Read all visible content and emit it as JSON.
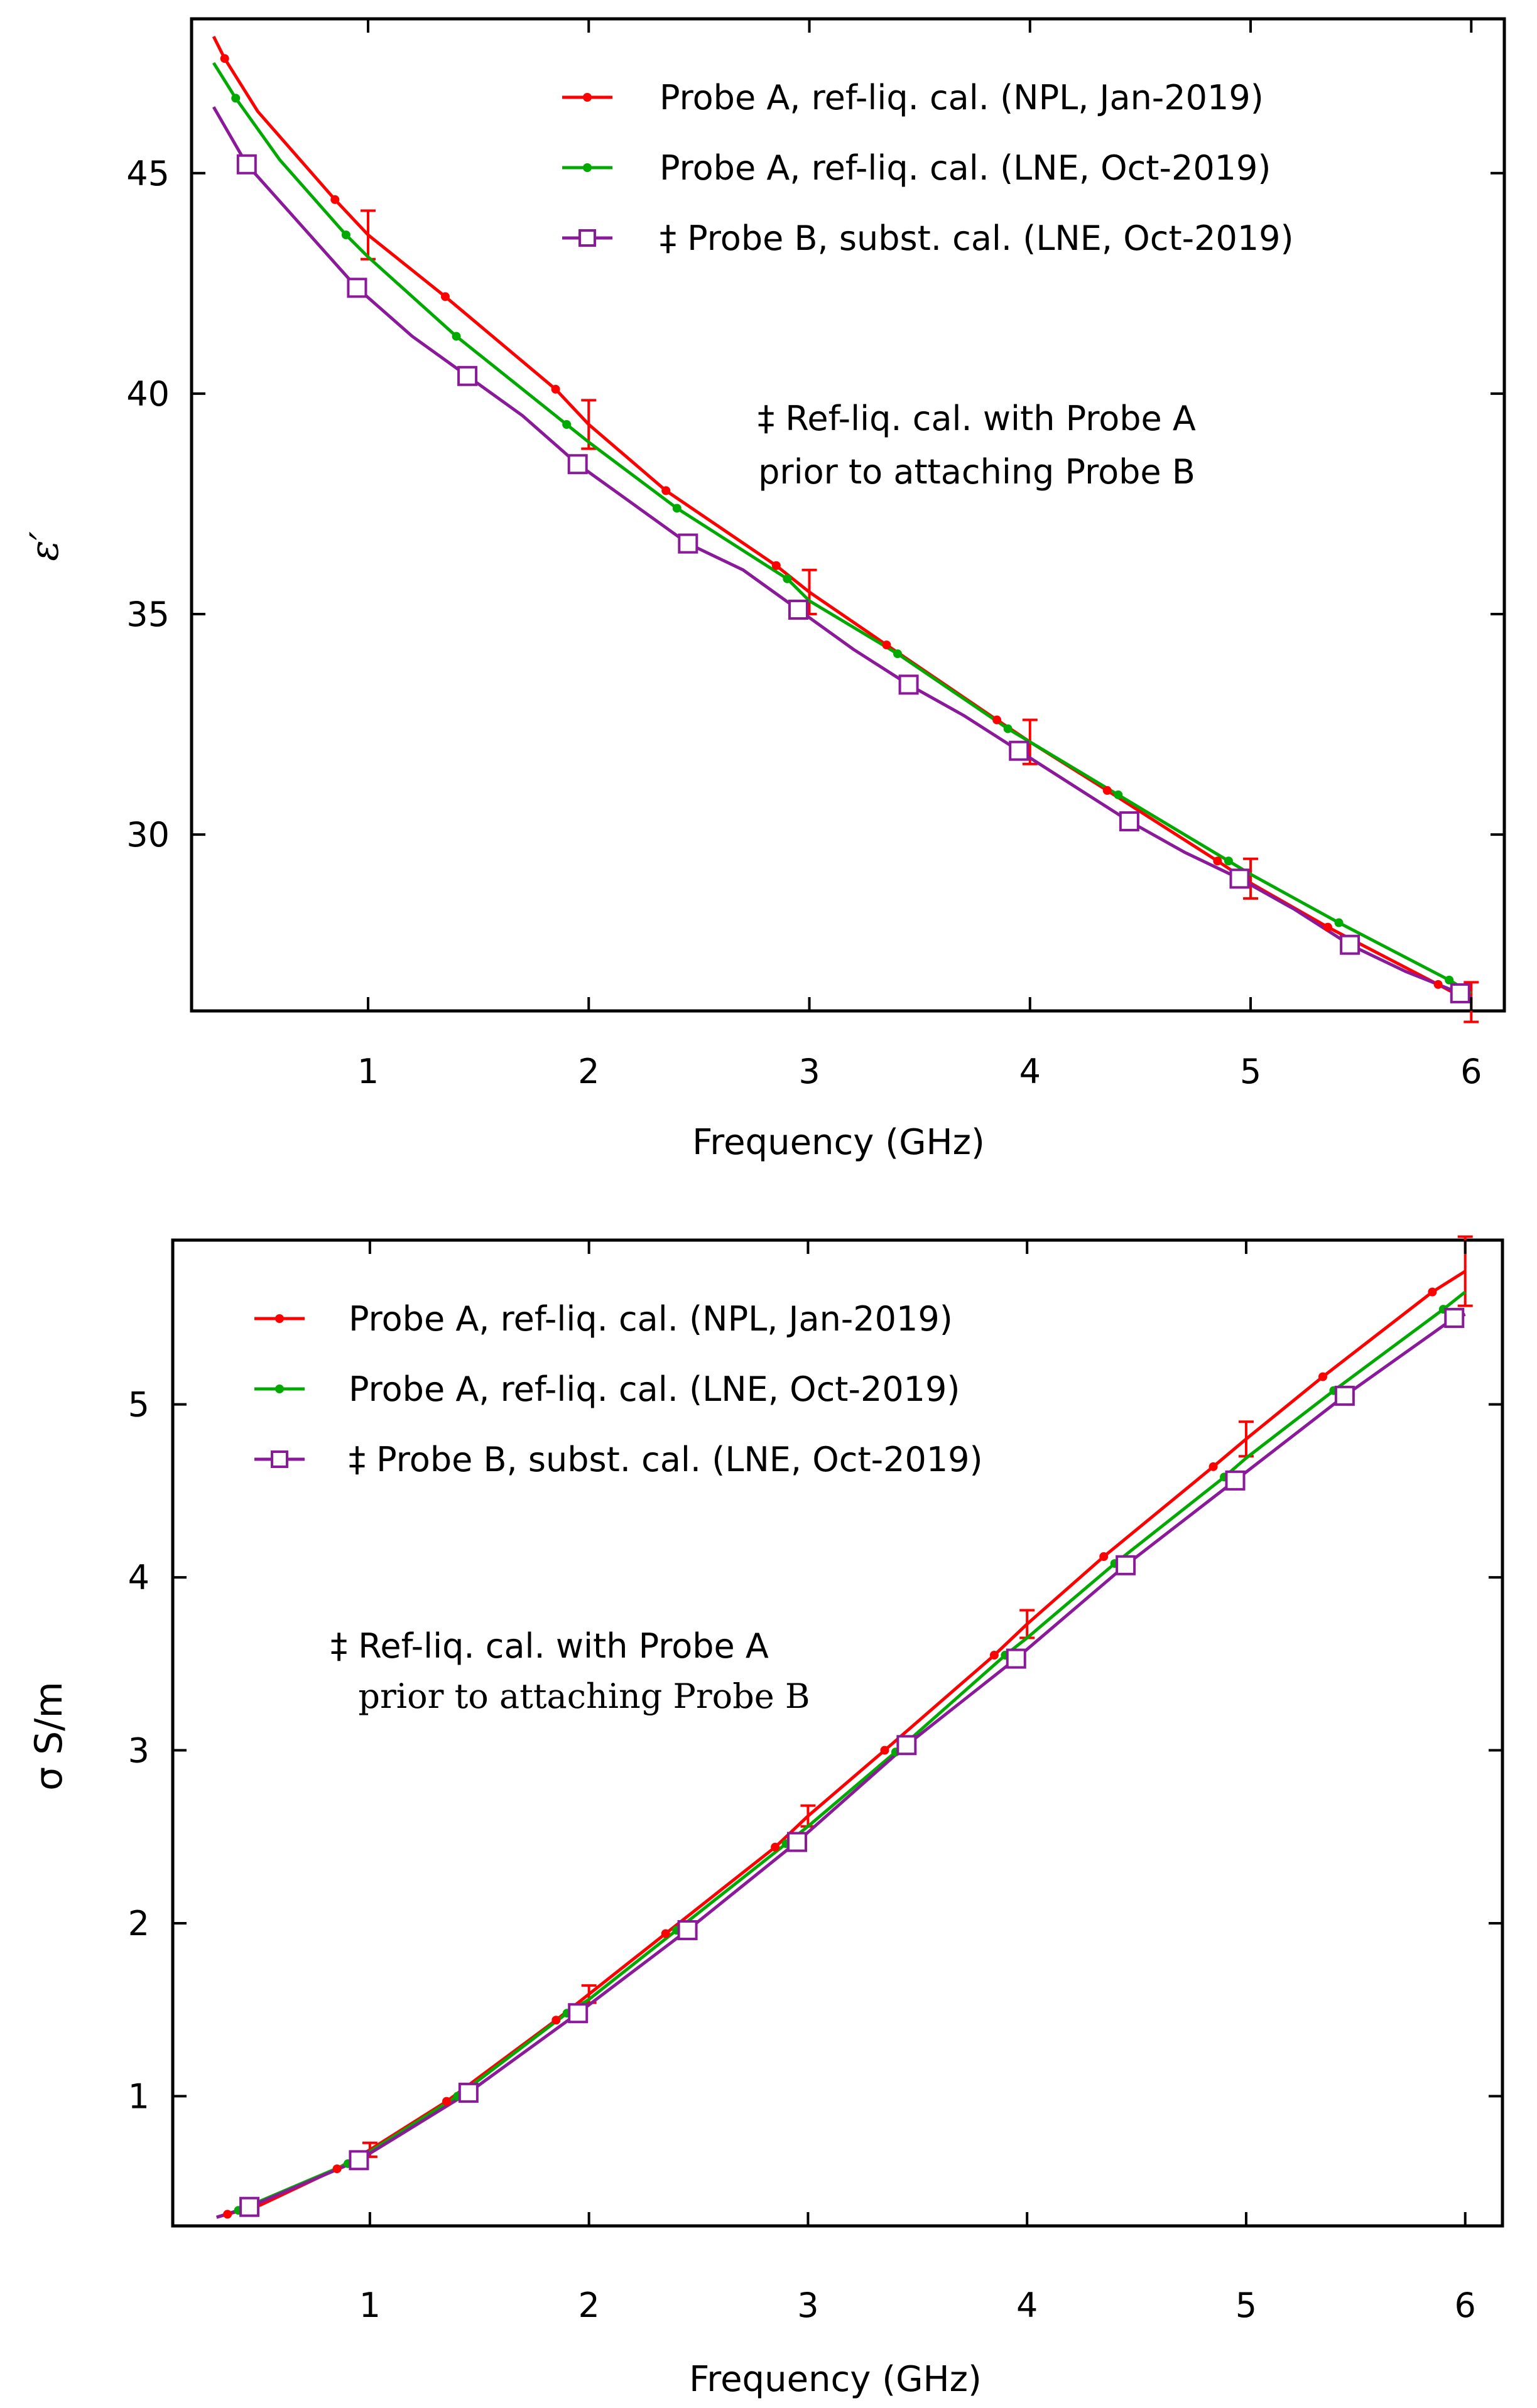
{
  "chart_data": [
    {
      "type": "line",
      "title": "",
      "xlabel": "Frequency (GHz)",
      "ylabel": "ε′",
      "xlim": [
        0.2,
        6.15
      ],
      "ylim": [
        26.0,
        48.5
      ],
      "xticks": [
        1,
        2,
        3,
        4,
        5,
        6
      ],
      "xtick_labels": [
        "1",
        "2",
        "3",
        "4",
        "5",
        "6"
      ],
      "yticks": [
        30,
        35,
        40,
        45
      ],
      "ytick_labels": [
        "30",
        "35",
        "40",
        "45"
      ],
      "legend_position": "top-right",
      "annotation": [
        "‡ Ref-liq. cal. with Probe A",
        "prior to attaching Probe B"
      ],
      "series": [
        {
          "name": "Probe A, ref-liq. cal. (NPL, Jan-2019)",
          "color": "#ff0000",
          "marker": "dot",
          "x": [
            0.3,
            0.35,
            0.5,
            0.85,
            1.0,
            1.35,
            1.85,
            2.0,
            2.35,
            2.85,
            3.0,
            3.35,
            3.85,
            4.0,
            4.35,
            4.85,
            5.0,
            5.35,
            5.85,
            6.0
          ],
          "y": [
            48.1,
            47.6,
            46.4,
            44.4,
            43.6,
            42.2,
            40.1,
            39.3,
            37.8,
            36.1,
            35.5,
            34.3,
            32.6,
            32.1,
            31.0,
            29.4,
            28.9,
            27.9,
            26.6,
            26.2
          ],
          "markers_x": [
            0.35,
            0.85,
            1.35,
            1.85,
            2.35,
            2.85,
            3.35,
            3.85,
            4.35,
            4.85,
            5.35,
            5.85
          ],
          "errorbars": [
            {
              "x": 1.0,
              "y": 43.6,
              "err": 0.55
            },
            {
              "x": 2.0,
              "y": 39.3,
              "err": 0.55
            },
            {
              "x": 3.0,
              "y": 35.5,
              "err": 0.5
            },
            {
              "x": 4.0,
              "y": 32.1,
              "err": 0.5
            },
            {
              "x": 5.0,
              "y": 29.0,
              "err": 0.45
            },
            {
              "x": 6.0,
              "y": 26.2,
              "err": 0.45
            }
          ]
        },
        {
          "name": "Probe A, ref-liq. cal. (LNE, Oct-2019)",
          "color": "#00aa00",
          "marker": "dot",
          "x": [
            0.3,
            0.4,
            0.6,
            0.9,
            1.0,
            1.4,
            1.9,
            2.0,
            2.4,
            2.9,
            3.0,
            3.4,
            3.9,
            4.0,
            4.4,
            4.9,
            5.0,
            5.4,
            5.9,
            6.0
          ],
          "y": [
            47.5,
            46.7,
            45.3,
            43.6,
            43.1,
            41.3,
            39.3,
            38.9,
            37.4,
            35.8,
            35.3,
            34.1,
            32.4,
            32.1,
            30.9,
            29.4,
            29.1,
            28.0,
            26.7,
            26.4
          ],
          "markers_x": [
            0.4,
            0.9,
            1.4,
            1.9,
            2.4,
            2.9,
            3.4,
            3.9,
            4.4,
            4.9,
            5.4,
            5.9
          ]
        },
        {
          "name": "‡ Probe B, subst. cal. (LNE, Oct-2019)",
          "color": "#8b1a9b",
          "marker": "square",
          "x": [
            0.3,
            0.45,
            0.7,
            0.95,
            1.2,
            1.45,
            1.7,
            1.95,
            2.2,
            2.45,
            2.7,
            2.95,
            3.2,
            3.45,
            3.7,
            3.95,
            4.2,
            4.45,
            4.7,
            4.95,
            5.2,
            5.45,
            5.7,
            5.95,
            6.0
          ],
          "y": [
            46.5,
            45.2,
            43.8,
            42.4,
            41.3,
            40.4,
            39.5,
            38.4,
            37.5,
            36.6,
            36.0,
            35.1,
            34.2,
            33.4,
            32.7,
            31.9,
            31.1,
            30.3,
            29.6,
            29.0,
            28.3,
            27.5,
            26.9,
            26.4,
            26.3
          ],
          "markers_x": [
            0.45,
            0.95,
            1.45,
            1.95,
            2.45,
            2.95,
            3.45,
            3.95,
            4.45,
            4.95,
            5.45,
            5.95
          ]
        }
      ]
    },
    {
      "type": "line",
      "title": "",
      "xlabel": "Frequency (GHz)",
      "ylabel": "σ S/m",
      "xlim": [
        0.1,
        6.17
      ],
      "ylim": [
        0.25,
        5.95
      ],
      "xticks": [
        1,
        2,
        3,
        4,
        5,
        6
      ],
      "xtick_labels": [
        "1",
        "2",
        "3",
        "4",
        "5",
        "6"
      ],
      "yticks": [
        1,
        2,
        3,
        4,
        5
      ],
      "ytick_labels": [
        "1",
        "2",
        "3",
        "4",
        "5"
      ],
      "legend_position": "top-left",
      "annotation": [
        "‡ Ref-liq. cal. with Probe A",
        "prior to attaching Probe B"
      ],
      "series": [
        {
          "name": "Probe A, ref-liq. cal. (NPL, Jan-2019)",
          "color": "#ff0000",
          "marker": "dot",
          "x": [
            0.3,
            0.5,
            0.85,
            1.0,
            1.35,
            1.85,
            2.0,
            2.35,
            2.85,
            3.0,
            3.35,
            3.85,
            4.0,
            4.35,
            4.85,
            5.0,
            5.35,
            5.85,
            6.0
          ],
          "y": [
            0.3,
            0.37,
            0.58,
            0.69,
            0.97,
            1.44,
            1.59,
            1.94,
            2.44,
            2.62,
            3.0,
            3.55,
            3.73,
            4.12,
            4.64,
            4.8,
            5.16,
            5.65,
            5.77
          ],
          "markers_x": [
            0.35,
            0.85,
            1.35,
            1.85,
            2.35,
            2.85,
            3.35,
            3.85,
            4.35,
            4.85,
            5.35,
            5.85
          ],
          "errorbars": [
            {
              "x": 1.0,
              "y": 0.69,
              "err": 0.04
            },
            {
              "x": 2.0,
              "y": 1.59,
              "err": 0.05
            },
            {
              "x": 3.0,
              "y": 2.62,
              "err": 0.06
            },
            {
              "x": 4.0,
              "y": 3.73,
              "err": 0.08
            },
            {
              "x": 5.0,
              "y": 4.8,
              "err": 0.1
            },
            {
              "x": 6.0,
              "y": 5.77,
              "err": 0.2
            }
          ]
        },
        {
          "name": "Probe A, ref-liq. cal. (LNE, Oct-2019)",
          "color": "#00aa00",
          "marker": "dot",
          "x": [
            0.3,
            0.4,
            0.9,
            1.0,
            1.4,
            1.9,
            2.0,
            2.4,
            2.9,
            3.0,
            3.4,
            3.9,
            4.0,
            4.4,
            4.9,
            5.0,
            5.4,
            5.9,
            6.0
          ],
          "y": [
            0.3,
            0.34,
            0.61,
            0.68,
            1.0,
            1.48,
            1.56,
            1.96,
            2.46,
            2.56,
            2.99,
            3.55,
            3.65,
            4.08,
            4.58,
            4.69,
            5.08,
            5.55,
            5.65
          ],
          "markers_x": [
            0.4,
            0.9,
            1.4,
            1.9,
            2.4,
            2.9,
            3.4,
            3.9,
            4.4,
            4.9,
            5.4,
            5.9
          ]
        },
        {
          "name": "‡ Probe B, subst. cal. (LNE, Oct-2019)",
          "color": "#8b1a9b",
          "marker": "square",
          "x": [
            0.3,
            0.45,
            0.95,
            1.45,
            1.95,
            2.45,
            2.95,
            3.45,
            3.95,
            4.45,
            4.95,
            5.45,
            5.95,
            6.0
          ],
          "y": [
            0.3,
            0.36,
            0.63,
            1.02,
            1.48,
            1.96,
            2.47,
            3.03,
            3.53,
            4.07,
            4.56,
            5.05,
            5.5,
            5.52
          ],
          "markers_x": [
            0.45,
            0.95,
            1.45,
            1.95,
            2.45,
            2.95,
            3.45,
            3.95,
            4.45,
            4.95,
            5.45,
            5.95
          ]
        }
      ]
    }
  ]
}
